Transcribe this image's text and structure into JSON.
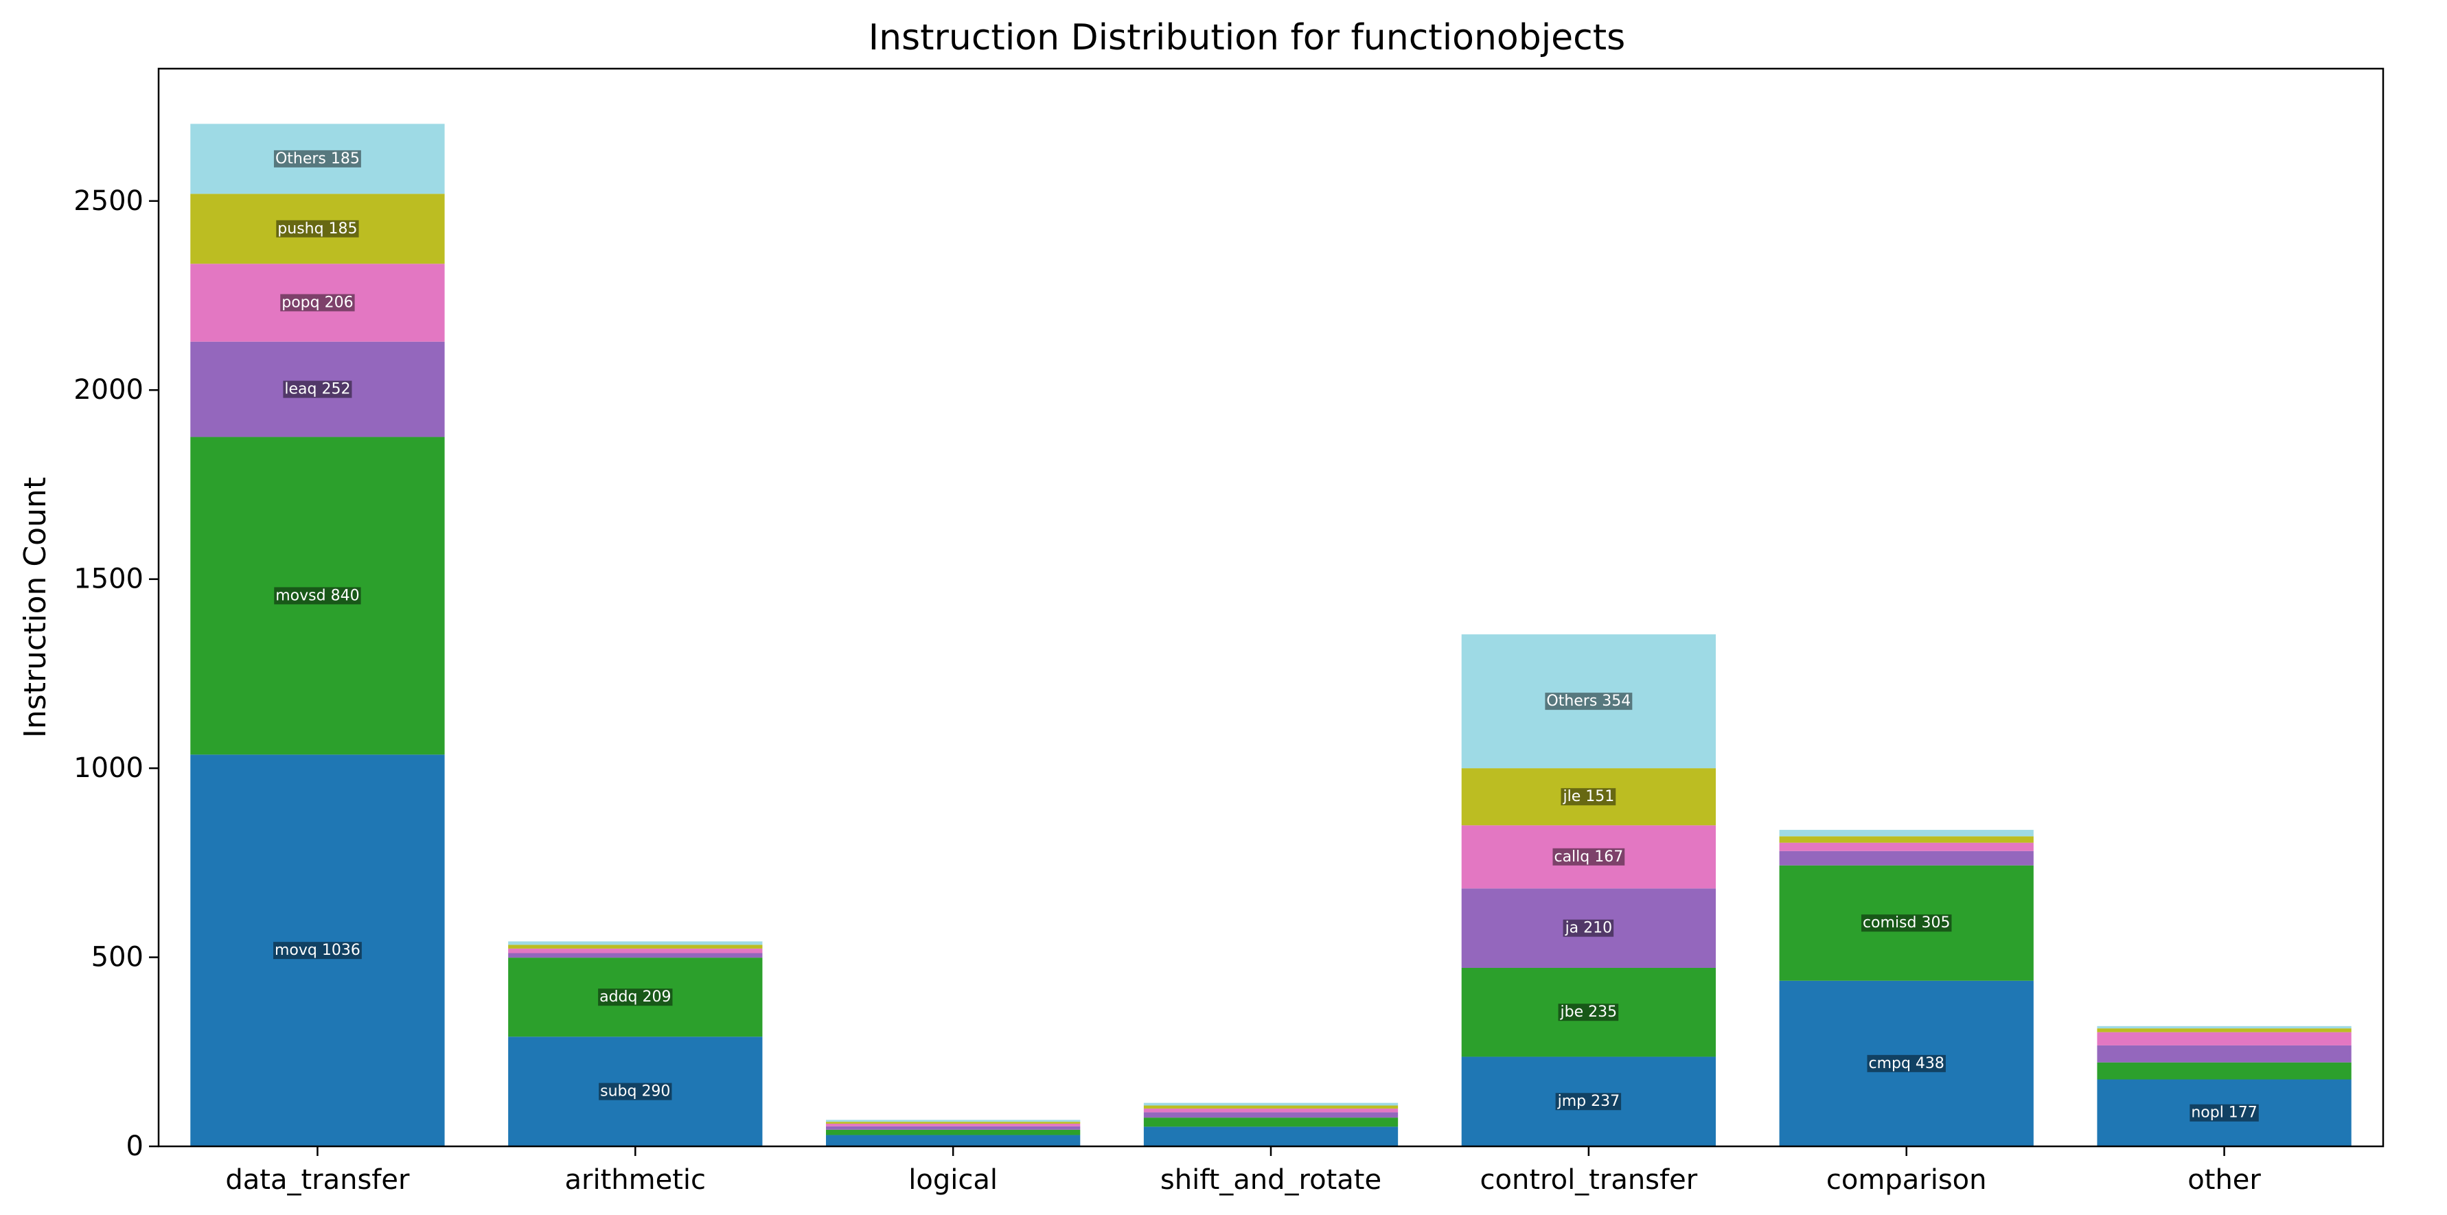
{
  "chart_data": {
    "type": "bar",
    "stacked": true,
    "title": "Instruction Distribution for functionobjects",
    "xlabel": "",
    "ylabel": "Instruction Count",
    "ylim": [
      0,
      2850
    ],
    "yticks": [
      0,
      500,
      1000,
      1500,
      2000,
      2500
    ],
    "grid": false,
    "legend": "none",
    "colors": [
      "#1f77b4",
      "#2ca02c",
      "#9467bd",
      "#e377c2",
      "#bcbd22",
      "#9edae5"
    ],
    "categories": [
      "data_transfer",
      "arithmetic",
      "logical",
      "shift_and_rotate",
      "control_transfer",
      "comparison",
      "other"
    ],
    "stacks": [
      {
        "category": "data_transfer",
        "segments": [
          {
            "value": 1036,
            "label": "movq 1036"
          },
          {
            "value": 840,
            "label": "movsd 840"
          },
          {
            "value": 252,
            "label": "leaq 252"
          },
          {
            "value": 206,
            "label": "popq 206"
          },
          {
            "value": 185,
            "label": "pushq 185"
          },
          {
            "value": 185,
            "label": "Others 185"
          }
        ]
      },
      {
        "category": "arithmetic",
        "segments": [
          {
            "value": 290,
            "label": "subq 290"
          },
          {
            "value": 209,
            "label": "addq 209"
          },
          {
            "value": 12,
            "label": ""
          },
          {
            "value": 12,
            "label": ""
          },
          {
            "value": 10,
            "label": ""
          },
          {
            "value": 9,
            "label": ""
          }
        ]
      },
      {
        "category": "logical",
        "segments": [
          {
            "value": 30,
            "label": ""
          },
          {
            "value": 14,
            "label": ""
          },
          {
            "value": 9,
            "label": ""
          },
          {
            "value": 7,
            "label": ""
          },
          {
            "value": 5,
            "label": ""
          },
          {
            "value": 5,
            "label": ""
          }
        ]
      },
      {
        "category": "shift_and_rotate",
        "segments": [
          {
            "value": 52,
            "label": ""
          },
          {
            "value": 24,
            "label": ""
          },
          {
            "value": 14,
            "label": ""
          },
          {
            "value": 10,
            "label": ""
          },
          {
            "value": 8,
            "label": ""
          },
          {
            "value": 7,
            "label": ""
          }
        ]
      },
      {
        "category": "control_transfer",
        "segments": [
          {
            "value": 237,
            "label": "jmp 237"
          },
          {
            "value": 235,
            "label": "jbe 235"
          },
          {
            "value": 210,
            "label": "ja 210"
          },
          {
            "value": 167,
            "label": "callq 167"
          },
          {
            "value": 151,
            "label": "jle 151"
          },
          {
            "value": 354,
            "label": "Others 354"
          }
        ]
      },
      {
        "category": "comparison",
        "segments": [
          {
            "value": 438,
            "label": "cmpq 438"
          },
          {
            "value": 305,
            "label": "comisd 305"
          },
          {
            "value": 38,
            "label": ""
          },
          {
            "value": 22,
            "label": ""
          },
          {
            "value": 17,
            "label": ""
          },
          {
            "value": 17,
            "label": ""
          }
        ]
      },
      {
        "category": "other",
        "segments": [
          {
            "value": 177,
            "label": "nopl 177"
          },
          {
            "value": 45,
            "label": ""
          },
          {
            "value": 45,
            "label": ""
          },
          {
            "value": 35,
            "label": ""
          },
          {
            "value": 10,
            "label": ""
          },
          {
            "value": 6,
            "label": ""
          }
        ]
      }
    ]
  }
}
